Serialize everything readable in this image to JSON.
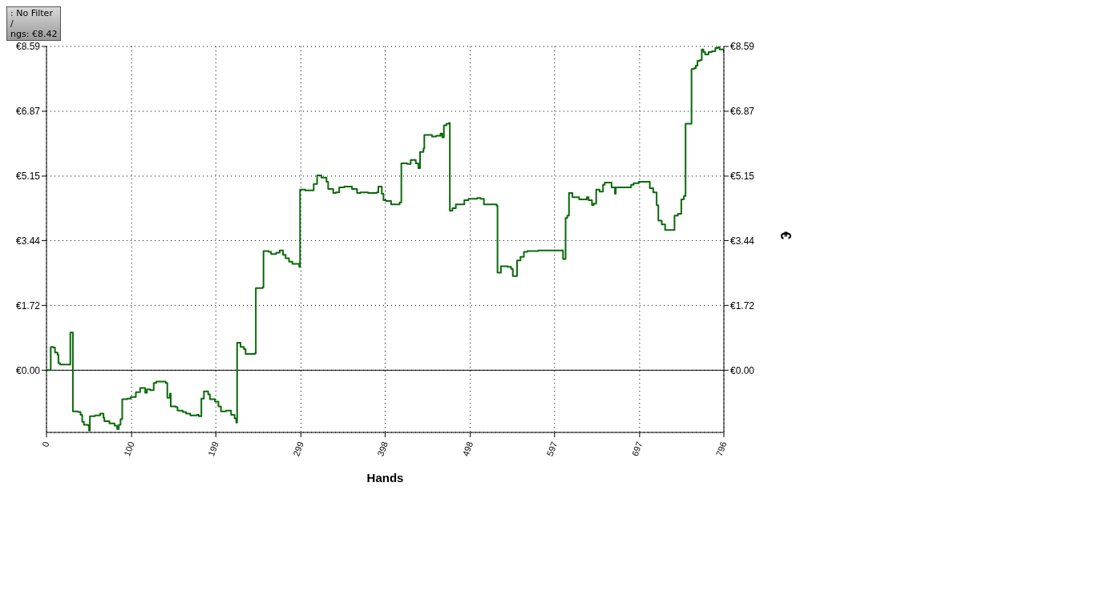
{
  "chart_data": {
    "type": "step",
    "xlabel": "Hands",
    "y2label": "€",
    "annotations": [
      ": No Filter",
      "/",
      "ngs: €8.42"
    ],
    "x": [
      0,
      4,
      5,
      8,
      10,
      13,
      14,
      16,
      27,
      28,
      30,
      31,
      37,
      40,
      42,
      44,
      49,
      50,
      51,
      57,
      63,
      67,
      68,
      74,
      80,
      83,
      85,
      87,
      89,
      95,
      99,
      105,
      110,
      114,
      116,
      118,
      122,
      126,
      129,
      136,
      140,
      142,
      145,
      146,
      152,
      154,
      160,
      164,
      169,
      177,
      179,
      182,
      185,
      190,
      192,
      198,
      202,
      205,
      211,
      217,
      221,
      223,
      224,
      228,
      232,
      234,
      238,
      245,
      246,
      254,
      255,
      261,
      264,
      270,
      274,
      278,
      281,
      285,
      289,
      297,
      298,
      304,
      310,
      314,
      318,
      323,
      329,
      331,
      337,
      340,
      344,
      350,
      354,
      359,
      365,
      369,
      378,
      388,
      390,
      394,
      396,
      399,
      405,
      415,
      417,
      424,
      428,
      434,
      437,
      439,
      443,
      444,
      449,
      453,
      458,
      463,
      465,
      467,
      470,
      473,
      474,
      477,
      481,
      487,
      491,
      496,
      506,
      510,
      514,
      529,
      530,
      534,
      542,
      546,
      548,
      552,
      553,
      557,
      561,
      565,
      578,
      603,
      607,
      609,
      610,
      612,
      614,
      618,
      626,
      631,
      635,
      637,
      641,
      643,
      646,
      650,
      654,
      656,
      664,
      668,
      669,
      677,
      687,
      690,
      696,
      706,
      709,
      713,
      717,
      719,
      723,
      727,
      736,
      738,
      742,
      746,
      749,
      751,
      755,
      758,
      761,
      763,
      765,
      768,
      770,
      772,
      774,
      778,
      782,
      786,
      789,
      791,
      796
    ],
    "series": [
      {
        "color": "#0a6a0a",
        "values": [
          0,
          0,
          0.62,
          0.6,
          0.47,
          0.41,
          0.19,
          0.15,
          0.15,
          1.0,
          1.0,
          -1.09,
          -1.11,
          -1.18,
          -1.37,
          -1.45,
          -1.47,
          -1.6,
          -1.22,
          -1.2,
          -1.15,
          -1.26,
          -1.35,
          -1.41,
          -1.47,
          -1.56,
          -1.45,
          -1.3,
          -0.77,
          -0.75,
          -0.71,
          -0.58,
          -0.47,
          -0.47,
          -0.6,
          -0.51,
          -0.53,
          -0.34,
          -0.3,
          -0.3,
          -0.34,
          -0.73,
          -0.62,
          -0.96,
          -0.98,
          -1.07,
          -1.11,
          -1.15,
          -1.2,
          -1.18,
          -1.22,
          -0.75,
          -0.56,
          -0.64,
          -0.77,
          -0.83,
          -0.96,
          -1.09,
          -1.07,
          -1.18,
          -1.28,
          -1.39,
          0.73,
          0.62,
          0.56,
          0.43,
          0.43,
          0.45,
          2.18,
          2.2,
          3.16,
          3.14,
          3.08,
          3.12,
          3.18,
          3.06,
          2.97,
          2.88,
          2.82,
          2.74,
          4.79,
          4.77,
          4.77,
          4.94,
          5.17,
          5.11,
          5.0,
          4.81,
          4.7,
          4.72,
          4.85,
          4.87,
          4.87,
          4.81,
          4.7,
          4.72,
          4.7,
          4.72,
          4.87,
          4.68,
          4.51,
          4.49,
          4.4,
          4.45,
          5.49,
          5.47,
          5.58,
          5.49,
          5.36,
          5.79,
          5.88,
          6.24,
          6.24,
          6.2,
          6.22,
          6.28,
          6.18,
          6.5,
          6.54,
          6.56,
          4.23,
          4.3,
          4.4,
          4.4,
          4.51,
          4.55,
          4.57,
          4.55,
          4.4,
          4.36,
          2.59,
          2.76,
          2.74,
          2.69,
          2.5,
          2.5,
          2.91,
          3.01,
          3.14,
          3.16,
          3.18,
          3.18,
          2.95,
          2.95,
          4.04,
          4.1,
          4.7,
          4.59,
          4.53,
          4.53,
          4.59,
          4.51,
          4.38,
          4.42,
          4.79,
          4.74,
          4.92,
          4.98,
          4.85,
          4.68,
          4.85,
          4.85,
          4.92,
          4.96,
          5.0,
          5.0,
          4.83,
          4.72,
          4.38,
          3.97,
          3.87,
          3.72,
          3.72,
          4.1,
          4.15,
          4.53,
          4.62,
          6.54,
          6.54,
          7.99,
          8.01,
          8.08,
          8.21,
          8.23,
          8.51,
          8.44,
          8.38,
          8.44,
          8.46,
          8.55,
          8.59,
          8.51,
          8.42
        ]
      }
    ],
    "xlim": [
      0,
      796
    ],
    "xticks": [
      0,
      100,
      199,
      299,
      398,
      498,
      597,
      697,
      796
    ],
    "ylim": [
      -1.65,
      8.59
    ],
    "yticks": [
      {
        "value": 0,
        "label": "€0.00"
      },
      {
        "value": 1.72,
        "label": "€1.72"
      },
      {
        "value": 3.44,
        "label": "€3.44"
      },
      {
        "value": 5.15,
        "label": "€5.15"
      },
      {
        "value": 6.87,
        "label": "€6.87"
      },
      {
        "value": 8.59,
        "label": "€8.59"
      }
    ],
    "y2lim": [
      -1.65,
      8.59
    ],
    "y2ticks": [
      {
        "value": 0,
        "label": "€0.00"
      },
      {
        "value": 1.72,
        "label": "€1.72"
      },
      {
        "value": 3.44,
        "label": "€3.44"
      },
      {
        "value": 5.15,
        "label": "€5.15"
      },
      {
        "value": 6.87,
        "label": "€6.87"
      },
      {
        "value": 8.59,
        "label": "€8.59"
      }
    ],
    "ref_lines": [
      {
        "axis": "y",
        "value": 0,
        "color": "#000000"
      }
    ],
    "grid": true,
    "legend": false,
    "marker": "none",
    "line_style": "solid"
  }
}
